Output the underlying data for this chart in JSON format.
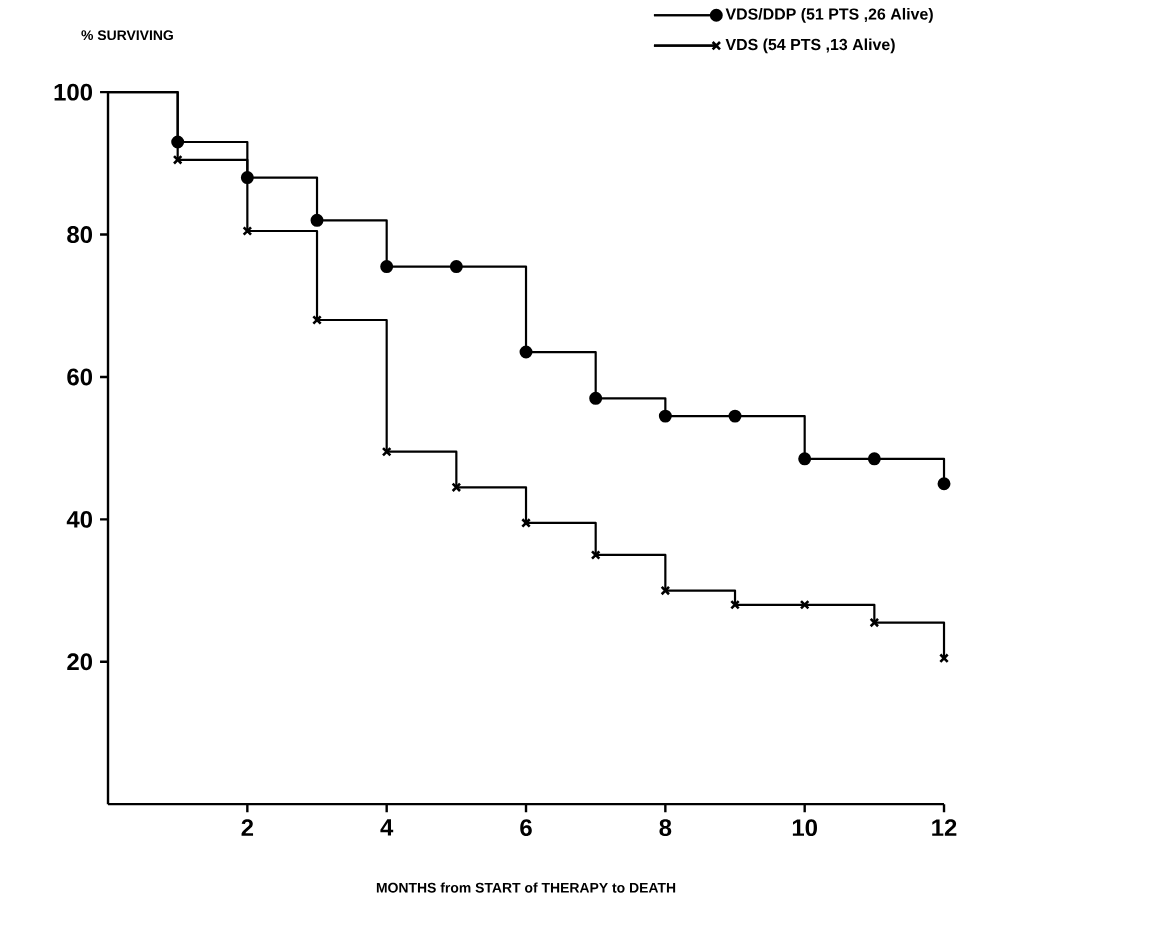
{
  "chart_data": {
    "type": "step",
    "ylabel": "% SURVIVING",
    "xlabel": "MONTHS from START  of THERAPY to DEATH",
    "x": [
      0,
      1,
      2,
      3,
      4,
      5,
      6,
      7,
      8,
      9,
      10,
      11,
      12
    ],
    "series": [
      {
        "name": "VDS/DDP (51 PTS ,26 Alive)",
        "color": "#000000",
        "marker": "circle",
        "values": [
          100,
          93,
          88,
          82,
          75.5,
          75.5,
          63.5,
          57,
          54.5,
          54.5,
          48.5,
          48.5,
          45
        ]
      },
      {
        "name": "VDS (54 PTS ,13 Alive)",
        "color": "#000000",
        "marker": "cross",
        "values": [
          100,
          90.5,
          80.5,
          68,
          49.5,
          44.5,
          39.5,
          35,
          30,
          28,
          28,
          25.5,
          20.5
        ]
      }
    ],
    "xlim": [
      0,
      12
    ],
    "ylim": [
      0,
      100
    ],
    "xticks": [
      2,
      4,
      6,
      8,
      10,
      12
    ],
    "yticks": [
      20,
      40,
      60,
      80,
      100
    ],
    "grid": false,
    "legend": "top right",
    "line_style": "solid"
  }
}
